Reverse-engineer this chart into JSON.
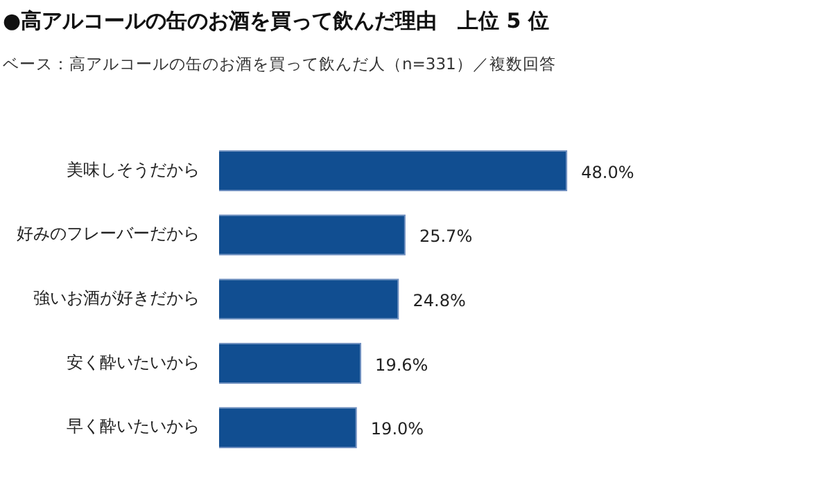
{
  "chart_data": {
    "type": "bar",
    "orientation": "horizontal",
    "title": "●高アルコールの缶のお酒を買って飲んだ理由　上位 5 位",
    "subtitle": "ベース：高アルコールの缶のお酒を買って飲んだ人（n=331）／複数回答",
    "categories": [
      "美味しそうだから",
      "好みのフレーバーだから",
      "強いお酒が好きだから",
      "安く酔いたいから",
      "早く酔いたいから"
    ],
    "values": [
      48.0,
      25.7,
      24.8,
      19.6,
      19.0
    ],
    "value_labels": [
      "48.0%",
      "25.7%",
      "24.8%",
      "19.6%",
      "19.0%"
    ],
    "color": "#114e91"
  }
}
